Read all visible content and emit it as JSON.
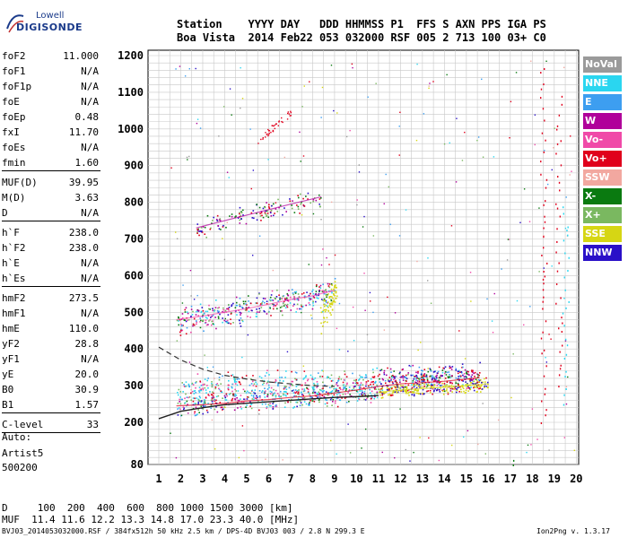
{
  "logo": {
    "line1": "Lowell",
    "line2": "DIGISONDE"
  },
  "header": {
    "row1": "Station    YYYY DAY   DDD HHMMSS P1  FFS S AXN PPS IGA PS",
    "row2": "Boa Vista  2014 Feb22 053 032000 RSF 005 2 713 100 03+ C0"
  },
  "params": {
    "group1": [
      {
        "label": "foF2",
        "value": "11.000"
      },
      {
        "label": "foF1",
        "value": "N/A"
      },
      {
        "label": "foF1p",
        "value": "N/A"
      },
      {
        "label": "foE",
        "value": "N/A"
      },
      {
        "label": "foEp",
        "value": "0.48"
      },
      {
        "label": "fxI",
        "value": "11.70"
      },
      {
        "label": "foEs",
        "value": "N/A"
      },
      {
        "label": "fmin",
        "value": "1.60"
      }
    ],
    "group2": [
      {
        "label": "MUF(D)",
        "value": "39.95"
      },
      {
        "label": "M(D)",
        "value": "3.63"
      },
      {
        "label": "D",
        "value": "N/A"
      }
    ],
    "group3": [
      {
        "label": "h`F",
        "value": "238.0"
      },
      {
        "label": "h`F2",
        "value": "238.0"
      },
      {
        "label": "h`E",
        "value": "N/A"
      },
      {
        "label": "h`Es",
        "value": "N/A"
      }
    ],
    "group4": [
      {
        "label": "hmF2",
        "value": "273.5"
      },
      {
        "label": "hmF1",
        "value": "N/A"
      },
      {
        "label": "hmE",
        "value": "110.0"
      },
      {
        "label": "yF2",
        "value": "28.8"
      },
      {
        "label": "yF1",
        "value": "N/A"
      },
      {
        "label": "yE",
        "value": "20.0"
      },
      {
        "label": "B0",
        "value": "30.9"
      },
      {
        "label": "B1",
        "value": "1.57"
      }
    ],
    "clevel": {
      "label": "C-level",
      "value": "33"
    }
  },
  "auto": {
    "line1": "Auto:",
    "line2": "Artist5",
    "line3": "500200"
  },
  "legend": [
    {
      "label": "NoVal",
      "color": "#9a9a9a"
    },
    {
      "label": "NNE",
      "color": "#2ad6f0"
    },
    {
      "label": "E",
      "color": "#3d9ef0"
    },
    {
      "label": "W",
      "color": "#b0009a"
    },
    {
      "label": "Vo-",
      "color": "#f04aa8"
    },
    {
      "label": "Vo+",
      "color": "#e0001c"
    },
    {
      "label": "SSW",
      "color": "#f2a8a0"
    },
    {
      "label": "X-",
      "color": "#0a7a10"
    },
    {
      "label": "X+",
      "color": "#7ab860"
    },
    {
      "label": "SSE",
      "color": "#d6d614"
    },
    {
      "label": "NNW",
      "color": "#2a10c8"
    }
  ],
  "bottom": {
    "d_row": "D     100  200  400  600  800 1000 1500 3000 [km]",
    "muf_row": "MUF  11.4 11.6 12.2 13.3 14.8 17.0 23.3 40.0 [MHz]"
  },
  "footer": {
    "left": "BVJ03_2014053032000.RSF / 384fx512h 50 kHz 2.5 km / DPS-4D BVJ03 003 / 2.8 N 299.3 E",
    "right": "Ion2Png v. 1.3.17"
  },
  "chart_data": {
    "type": "scatter",
    "xlim": [
      1,
      20
    ],
    "ylim": [
      80,
      1200
    ],
    "xticks": [
      1,
      2,
      3,
      4,
      5,
      6,
      7,
      8,
      9,
      10,
      11,
      12,
      13,
      14,
      15,
      16,
      17,
      18,
      19,
      20
    ],
    "yticks": [
      80,
      200,
      300,
      400,
      500,
      600,
      700,
      800,
      900,
      1000,
      1100,
      1200
    ],
    "grid": true,
    "legend_position": "right",
    "traces": [
      {
        "name": "o-trace",
        "color": "#e0001c",
        "x": [
          1.8,
          3,
          4,
          5,
          6,
          7,
          8,
          9,
          10,
          11,
          12,
          13,
          14,
          15,
          15.6
        ],
        "y": [
          245,
          248,
          252,
          258,
          262,
          268,
          272,
          280,
          288,
          298,
          305,
          308,
          312,
          318,
          322
        ]
      },
      {
        "name": "second-hop",
        "color": "#f04aa8",
        "x": [
          1.8,
          3,
          4,
          5,
          6,
          7,
          8,
          9
        ],
        "y": [
          480,
          490,
          500,
          510,
          522,
          535,
          545,
          560
        ]
      },
      {
        "name": "third-hop",
        "color": "#b0009a",
        "x": [
          2.7,
          4,
          5,
          6,
          7,
          8.4
        ],
        "y": [
          730,
          750,
          765,
          780,
          795,
          815
        ]
      },
      {
        "name": "x-trace",
        "color": "#d6d614",
        "x": [
          11,
          12,
          13,
          14,
          15,
          16
        ],
        "y": [
          282,
          288,
          292,
          296,
          300,
          305
        ]
      }
    ],
    "profile_curve": {
      "x": [
        1,
        2,
        3,
        4,
        5,
        6,
        7,
        8,
        9,
        10,
        11
      ],
      "y": [
        210,
        230,
        240,
        248,
        252,
        256,
        260,
        264,
        268,
        270,
        273
      ]
    },
    "dashed_curve": {
      "x": [
        1,
        2,
        3,
        4,
        5,
        6,
        7,
        8,
        9
      ],
      "y": [
        405,
        370,
        345,
        328,
        318,
        310,
        305,
        300,
        298
      ]
    }
  }
}
